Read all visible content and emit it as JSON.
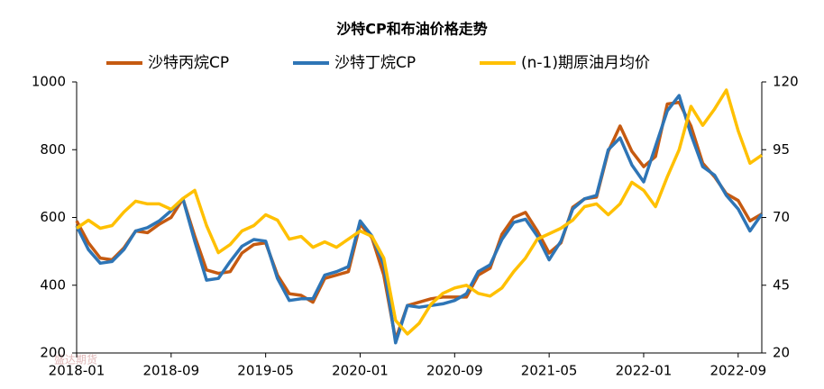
{
  "chart_data": {
    "type": "line",
    "title": "沙特CP和布油价格走势",
    "watermark": "盛达期货",
    "categories": [
      "2018-01",
      null,
      null,
      null,
      null,
      null,
      null,
      null,
      "2018-09",
      null,
      null,
      null,
      null,
      null,
      null,
      null,
      "2019-05",
      null,
      null,
      null,
      null,
      null,
      null,
      null,
      "2020-01",
      null,
      null,
      null,
      null,
      null,
      null,
      null,
      "2020-09",
      null,
      null,
      null,
      null,
      null,
      null,
      null,
      "2021-05",
      null,
      null,
      null,
      null,
      null,
      null,
      null,
      "2022-01",
      null,
      null,
      null,
      null,
      null,
      null,
      null,
      "2022-09",
      null,
      null
    ],
    "series": [
      {
        "name": "沙特丙烷CP",
        "color": "#c55a11",
        "axis": "y",
        "values": [
          590,
          525,
          480,
          475,
          510,
          560,
          555,
          580,
          600,
          655,
          545,
          445,
          435,
          440,
          495,
          520,
          525,
          430,
          375,
          370,
          350,
          420,
          430,
          440,
          580,
          540,
          430,
          240,
          340,
          350,
          360,
          365,
          365,
          365,
          430,
          450,
          550,
          600,
          615,
          560,
          495,
          525,
          630,
          655,
          660,
          795,
          870,
          795,
          750,
          780,
          935,
          940,
          870,
          760,
          720,
          670,
          650,
          590,
          610
        ]
      },
      {
        "name": "沙特丁烷CP",
        "color": "#2e75b6",
        "axis": "y",
        "values": [
          575,
          505,
          465,
          470,
          505,
          560,
          570,
          590,
          620,
          655,
          530,
          415,
          420,
          470,
          515,
          535,
          530,
          420,
          355,
          360,
          360,
          430,
          440,
          455,
          590,
          545,
          460,
          230,
          340,
          335,
          340,
          345,
          355,
          375,
          440,
          460,
          535,
          585,
          595,
          545,
          475,
          530,
          625,
          655,
          665,
          800,
          835,
          755,
          705,
          810,
          915,
          960,
          845,
          750,
          725,
          665,
          625,
          560,
          610
        ]
      },
      {
        "name": "(n-1)期原油月均价",
        "color": "#ffc000",
        "axis": "y2",
        "values": [
          66,
          69,
          66,
          67,
          72,
          76,
          75,
          75,
          73,
          77,
          80,
          67,
          57,
          60,
          65,
          67,
          71,
          69,
          62,
          63,
          59,
          61,
          59,
          62,
          65,
          63,
          55,
          32,
          27,
          31,
          38,
          42,
          44,
          45,
          42,
          41,
          44,
          50,
          55,
          62,
          64,
          66,
          69,
          74,
          75,
          71,
          75,
          83,
          80,
          74,
          85,
          95,
          111,
          104,
          110,
          117,
          102,
          90,
          93
        ]
      }
    ],
    "ylim": [
      200,
      1000
    ],
    "yticks": [
      200,
      400,
      600,
      800,
      1000
    ],
    "y2lim": [
      20,
      120
    ],
    "y2ticks": [
      20,
      45,
      70,
      95,
      120
    ],
    "legend": "top"
  }
}
